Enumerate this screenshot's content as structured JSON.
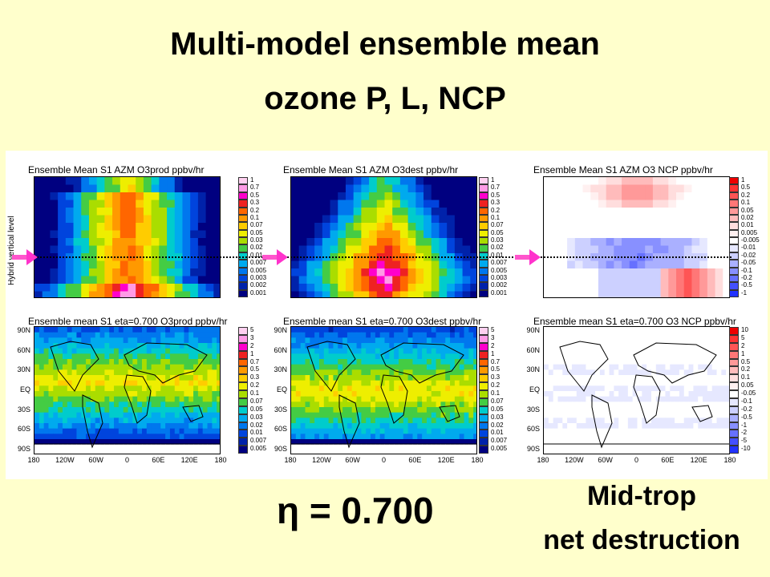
{
  "title_line1": "Multi-model ensemble mean",
  "title_line2": "ozone P, L, NCP",
  "y_axis_label": "Hybrid vertical level",
  "eta_label": "η = 0.700",
  "mid_trop_line1": "Mid-trop",
  "mid_trop_line2": "net destruction",
  "chart_data": [
    {
      "type": "heatmap",
      "title": "Ensemble Mean S1 AZM O3prod ppbv/hr",
      "ylabel": "Hybrid vertical level",
      "colorbar": [
        "1",
        "0.7",
        "0.5",
        "0.3",
        "0.2",
        "0.1",
        "0.07",
        "0.05",
        "0.03",
        "0.02",
        "0.01",
        "0.007",
        "0.005",
        "0.003",
        "0.002",
        "0.001"
      ],
      "colors": [
        "#ffd0f0",
        "#ff9be6",
        "#ff00cc",
        "#ee2222",
        "#ff6600",
        "#ff9900",
        "#ffcc00",
        "#eeee00",
        "#aadd00",
        "#44cc44",
        "#00cccc",
        "#00aaee",
        "#0077ee",
        "#0044dd",
        "#0022aa",
        "#000080"
      ]
    },
    {
      "type": "heatmap",
      "title": "Ensemble Mean S1 AZM O3dest ppbv/hr",
      "colorbar": [
        "1",
        "0.7",
        "0.5",
        "0.3",
        "0.2",
        "0.1",
        "0.07",
        "0.05",
        "0.03",
        "0.02",
        "0.01",
        "0.007",
        "0.005",
        "0.003",
        "0.002",
        "0.001"
      ],
      "colors": [
        "#ffd0f0",
        "#ff9be6",
        "#ff00cc",
        "#ee2222",
        "#ff6600",
        "#ff9900",
        "#ffcc00",
        "#eeee00",
        "#aadd00",
        "#44cc44",
        "#00cccc",
        "#00aaee",
        "#0077ee",
        "#0044dd",
        "#0022aa",
        "#000080"
      ]
    },
    {
      "type": "heatmap",
      "title": "Ensemble Mean S1 AZM O3 NCP ppbv/hr",
      "colorbar": [
        "1",
        "0.5",
        "0.2",
        "0.1",
        "0.05",
        "0.02",
        "0.01",
        "0.005",
        "-0.005",
        "-0.01",
        "-0.02",
        "-0.05",
        "-0.1",
        "-0.2",
        "-0.5",
        "-1"
      ],
      "colors": [
        "#ee0000",
        "#ff3333",
        "#ff5555",
        "#ff7777",
        "#ff9999",
        "#ffbbbb",
        "#ffdddd",
        "#fff0f0",
        "#ffffff",
        "#e6e8ff",
        "#ccd0ff",
        "#aab0ff",
        "#8890ff",
        "#6670ff",
        "#4450ff",
        "#2233ff"
      ]
    },
    {
      "type": "heatmap",
      "title": "Ensemble mean S1 eta=0.700 O3prod ppbv/hr",
      "yticks": [
        "90N",
        "60N",
        "30N",
        "EQ",
        "30S",
        "60S",
        "90S"
      ],
      "xticks": [
        "180",
        "120W",
        "60W",
        "0",
        "60E",
        "120E",
        "180"
      ],
      "colorbar": [
        "5",
        "3",
        "2",
        "1",
        "0.7",
        "0.5",
        "0.3",
        "0.2",
        "0.1",
        "0.07",
        "0.05",
        "0.03",
        "0.02",
        "0.01",
        "0.007",
        "0.005"
      ],
      "colors": [
        "#ffd0f0",
        "#ff9be6",
        "#ff00cc",
        "#ee2222",
        "#ff6600",
        "#ff9900",
        "#ffcc00",
        "#eeee00",
        "#aadd00",
        "#44cc44",
        "#00cccc",
        "#00aaee",
        "#0077ee",
        "#0044dd",
        "#0022aa",
        "#000080"
      ]
    },
    {
      "type": "heatmap",
      "title": "Ensemble mean S1 eta=0.700 O3dest ppbv/hr",
      "yticks": [
        "90N",
        "60N",
        "30N",
        "EQ",
        "30S",
        "60S",
        "90S"
      ],
      "xticks": [
        "180",
        "120W",
        "60W",
        "0",
        "60E",
        "120E",
        "180"
      ],
      "colorbar": [
        "5",
        "3",
        "2",
        "1",
        "0.7",
        "0.5",
        "0.3",
        "0.2",
        "0.1",
        "0.07",
        "0.05",
        "0.03",
        "0.02",
        "0.01",
        "0.007",
        "0.005"
      ],
      "colors": [
        "#ffd0f0",
        "#ff9be6",
        "#ff00cc",
        "#ee2222",
        "#ff6600",
        "#ff9900",
        "#ffcc00",
        "#eeee00",
        "#aadd00",
        "#44cc44",
        "#00cccc",
        "#00aaee",
        "#0077ee",
        "#0044dd",
        "#0022aa",
        "#000080"
      ]
    },
    {
      "type": "heatmap",
      "title": "Ensemble mean S1 eta=0.700 O3 NCP ppbv/hr",
      "yticks": [
        "90N",
        "60N",
        "30N",
        "EQ",
        "30S",
        "60S",
        "90S"
      ],
      "xticks": [
        "180",
        "120W",
        "60W",
        "0",
        "60E",
        "120E",
        "180"
      ],
      "colorbar": [
        "10",
        "5",
        "2",
        "1",
        "0.5",
        "0.2",
        "0.1",
        "0.05",
        "-0.05",
        "-0.1",
        "-0.2",
        "-0.5",
        "-1",
        "-2",
        "-5",
        "-10"
      ],
      "colors": [
        "#ee0000",
        "#ff3333",
        "#ff5555",
        "#ff7777",
        "#ff9999",
        "#ffbbbb",
        "#ffdddd",
        "#fff0f0",
        "#ffffff",
        "#e6e8ff",
        "#ccd0ff",
        "#aab0ff",
        "#8890ff",
        "#6670ff",
        "#4450ff",
        "#2233ff"
      ]
    }
  ]
}
